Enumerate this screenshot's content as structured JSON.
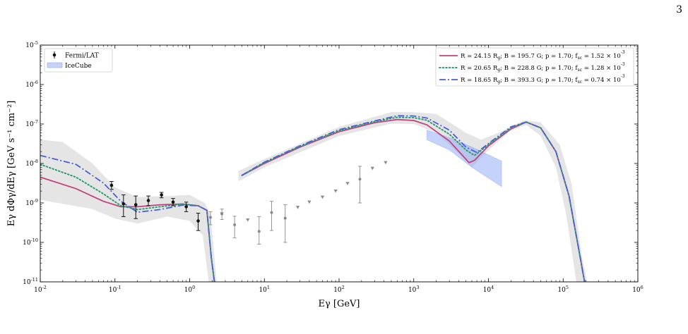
{
  "page": {
    "number": "3"
  },
  "chart_data": {
    "type": "line",
    "title": "",
    "xlabel": "Eγ [GeV]",
    "ylabel": "Eγ dΦγ/dEγ [GeV s⁻¹ cm⁻²]",
    "x_scale": "log",
    "y_scale": "log",
    "xlim": [
      0.01,
      1000000
    ],
    "ylim": [
      1e-11,
      1e-05
    ],
    "x_ticks": [
      {
        "value": 0.01,
        "base": "10",
        "exp": "-2"
      },
      {
        "value": 0.1,
        "base": "10",
        "exp": "-1"
      },
      {
        "value": 1,
        "base": "10",
        "exp": "0"
      },
      {
        "value": 10,
        "base": "10",
        "exp": "1"
      },
      {
        "value": 100,
        "base": "10",
        "exp": "2"
      },
      {
        "value": 1000,
        "base": "10",
        "exp": "3"
      },
      {
        "value": 10000,
        "base": "10",
        "exp": "4"
      },
      {
        "value": 100000,
        "base": "10",
        "exp": "5"
      },
      {
        "value": 1000000,
        "base": "10",
        "exp": "6"
      }
    ],
    "y_ticks": [
      {
        "value": 1e-11,
        "base": "10",
        "exp": "-11"
      },
      {
        "value": 1e-10,
        "base": "10",
        "exp": "-10"
      },
      {
        "value": 1e-09,
        "base": "10",
        "exp": "-9"
      },
      {
        "value": 1e-08,
        "base": "10",
        "exp": "-8"
      },
      {
        "value": 1e-07,
        "base": "10",
        "exp": "-7"
      },
      {
        "value": 1e-06,
        "base": "10",
        "exp": "-6"
      },
      {
        "value": 1e-05,
        "base": "10",
        "exp": "-5"
      }
    ],
    "grid": false,
    "legend_left": {
      "position": "top-left",
      "entries": [
        {
          "label": "Fermi/LAT",
          "kind": "errorbar-point",
          "color": "#111111"
        },
        {
          "label": "IceCube",
          "kind": "band",
          "color": "#7f9cf5"
        }
      ]
    },
    "legend_right": {
      "position": "top-right"
    },
    "series": [
      {
        "name": "R = 24.15 Rg; B = 195.7 G; p = 1.70; fsc = 1.52 × 10⁻³",
        "label": {
          "R": "24.15",
          "B": "195.7",
          "p": "1.70",
          "fsc": "1.52",
          "exp": "-3"
        },
        "color": "#c2407e",
        "style": "solid",
        "segments": [
          [
            [
              0.01,
              4.5e-09
            ],
            [
              0.03,
              2.3e-09
            ],
            [
              0.07,
              1.1e-09
            ],
            [
              0.12,
              8e-10
            ],
            [
              0.2,
              8e-10
            ],
            [
              0.4,
              9e-10
            ],
            [
              0.8,
              9.4e-10
            ],
            [
              1.3,
              8.5e-10
            ],
            [
              1.7,
              6.5e-10
            ],
            [
              1.95,
              4e-11
            ],
            [
              2.2,
              7e-12
            ]
          ],
          [
            [
              5,
              5e-09
            ],
            [
              10,
              1e-08
            ],
            [
              30,
              2.6e-08
            ],
            [
              100,
              6.4e-08
            ],
            [
              300,
              1.08e-07
            ],
            [
              600,
              1.3e-07
            ],
            [
              1000,
              1.23e-07
            ],
            [
              1500,
              9.5e-08
            ],
            [
              3000,
              3.7e-08
            ],
            [
              5500,
              1.05e-08
            ],
            [
              6500,
              1.2e-08
            ],
            [
              10000,
              2.8e-08
            ],
            [
              20000,
              7.5e-08
            ],
            [
              32000,
              1.12e-07
            ],
            [
              50000,
              8e-08
            ],
            [
              80000,
              2e-08
            ],
            [
              120000,
              1.5e-09
            ],
            [
              170000,
              4e-11
            ],
            [
              200000,
              7e-12
            ]
          ]
        ]
      },
      {
        "name": "R = 20.65 Rg; B = 228.8 G; p = 1.70; fsc = 1.28 × 10⁻³",
        "label": {
          "R": "20.65",
          "B": "228.8",
          "p": "1.70",
          "fsc": "1.28",
          "exp": "-3"
        },
        "color": "#2a9d6f",
        "style": "dotted",
        "segments": [
          [
            [
              0.01,
              9.5e-09
            ],
            [
              0.03,
              4.5e-09
            ],
            [
              0.07,
              1.7e-09
            ],
            [
              0.12,
              8.5e-10
            ],
            [
              0.2,
              6.8e-10
            ],
            [
              0.4,
              8e-10
            ],
            [
              0.8,
              9.4e-10
            ],
            [
              1.3,
              8.5e-10
            ],
            [
              1.7,
              6.5e-10
            ],
            [
              1.95,
              4e-11
            ],
            [
              2.2,
              7e-12
            ]
          ],
          [
            [
              5,
              5e-09
            ],
            [
              10,
              1.05e-08
            ],
            [
              30,
              2.7e-08
            ],
            [
              100,
              6.8e-08
            ],
            [
              300,
              1.15e-07
            ],
            [
              600,
              1.48e-07
            ],
            [
              1000,
              1.45e-07
            ],
            [
              1500,
              1.25e-07
            ],
            [
              3000,
              5.5e-08
            ],
            [
              5000,
              2.2e-08
            ],
            [
              6500,
              1.6e-08
            ],
            [
              10000,
              3e-08
            ],
            [
              20000,
              8e-08
            ],
            [
              32000,
              1.12e-07
            ],
            [
              50000,
              8e-08
            ],
            [
              80000,
              2e-08
            ],
            [
              120000,
              1.5e-09
            ],
            [
              170000,
              4e-11
            ],
            [
              200000,
              7e-12
            ]
          ]
        ]
      },
      {
        "name": "R = 18.65 Rg; B = 393.3 G; p = 1.70; fsc = 0.74 × 10⁻³",
        "label": {
          "R": "18.65",
          "B": "393.3",
          "p": "1.70",
          "fsc": "0.74",
          "exp": "-3"
        },
        "color": "#4a5fd4",
        "style": "dashdot",
        "segments": [
          [
            [
              0.01,
              1.6e-08
            ],
            [
              0.03,
              9.5e-09
            ],
            [
              0.07,
              3.2e-09
            ],
            [
              0.12,
              1.1e-09
            ],
            [
              0.2,
              5.8e-10
            ],
            [
              0.4,
              6.8e-10
            ],
            [
              0.8,
              8.8e-10
            ],
            [
              1.3,
              8.5e-10
            ],
            [
              1.7,
              6.5e-10
            ],
            [
              1.95,
              4e-11
            ],
            [
              2.2,
              7e-12
            ]
          ],
          [
            [
              5,
              5e-09
            ],
            [
              10,
              1.08e-08
            ],
            [
              30,
              2.8e-08
            ],
            [
              100,
              7.2e-08
            ],
            [
              300,
              1.2e-07
            ],
            [
              600,
              1.62e-07
            ],
            [
              1000,
              1.6e-07
            ],
            [
              1500,
              1.42e-07
            ],
            [
              3000,
              7e-08
            ],
            [
              5000,
              2.6e-08
            ],
            [
              7000,
              1.9e-08
            ],
            [
              10000,
              3.2e-08
            ],
            [
              20000,
              8.5e-08
            ],
            [
              32000,
              1.12e-07
            ],
            [
              50000,
              8e-08
            ],
            [
              80000,
              2e-08
            ],
            [
              120000,
              1.5e-09
            ],
            [
              170000,
              4e-11
            ],
            [
              200000,
              7e-12
            ]
          ]
        ]
      }
    ],
    "uncertainty_band": {
      "color": "#cfcfcf",
      "segments": [
        {
          "upper": [
            [
              0.01,
              4e-08
            ],
            [
              0.02,
              3.5e-08
            ],
            [
              0.05,
              1e-08
            ],
            [
              0.1,
              2.5e-09
            ],
            [
              0.2,
              1.4e-09
            ],
            [
              0.5,
              1.5e-09
            ],
            [
              1,
              1.6e-09
            ],
            [
              1.6,
              1e-09
            ],
            [
              1.9,
              5e-10
            ],
            [
              2.3,
              1e-11
            ]
          ],
          "lower": [
            [
              0.01,
              1.2e-09
            ],
            [
              0.05,
              7e-10
            ],
            [
              0.1,
              4e-10
            ],
            [
              0.2,
              3e-10
            ],
            [
              0.5,
              4.5e-10
            ],
            [
              1,
              3.5e-10
            ],
            [
              1.5,
              1.5e-10
            ],
            [
              1.8,
              1e-11
            ],
            [
              2.1,
              1e-11
            ]
          ]
        },
        {
          "upper": [
            [
              4.5,
              6.5e-09
            ],
            [
              10,
              1.3e-08
            ],
            [
              100,
              8.5e-08
            ],
            [
              500,
              2e-07
            ],
            [
              1000,
              2e-07
            ],
            [
              2000,
              1.8e-07
            ],
            [
              5000,
              6e-08
            ],
            [
              8000,
              4e-08
            ],
            [
              15000,
              6.5e-08
            ],
            [
              30000,
              1.25e-07
            ],
            [
              50000,
              1.1e-07
            ],
            [
              90000,
              3e-08
            ],
            [
              130000,
              3e-09
            ],
            [
              180000,
              4e-11
            ],
            [
              210000,
              1e-11
            ]
          ],
          "lower": [
            [
              4.5,
              3.5e-09
            ],
            [
              10,
              8e-09
            ],
            [
              100,
              5e-08
            ],
            [
              500,
              1.02e-07
            ],
            [
              1000,
              1e-07
            ],
            [
              2000,
              6e-08
            ],
            [
              4000,
              1.8e-08
            ],
            [
              6000,
              8e-09
            ],
            [
              9000,
              1.8e-08
            ],
            [
              20000,
              7e-08
            ],
            [
              32000,
              9.5e-08
            ],
            [
              50000,
              5e-08
            ],
            [
              80000,
              8e-09
            ],
            [
              110000,
              5e-10
            ],
            [
              150000,
              1e-11
            ]
          ]
        }
      ]
    },
    "icecube_band": {
      "label": "IceCube",
      "color": "#7f9cf5",
      "upper": [
        [
          1500,
          7e-08
        ],
        [
          3000,
          4.5e-08
        ],
        [
          6000,
          2.6e-08
        ],
        [
          15000,
          1.15e-08
        ]
      ],
      "lower": [
        [
          1500,
          4e-08
        ],
        [
          3000,
          2.2e-08
        ],
        [
          6000,
          8e-09
        ],
        [
          15000,
          2.6e-09
        ]
      ]
    },
    "fermi_points": [
      {
        "x": 0.09,
        "y": 2.8e-09,
        "lo": 2.2e-09,
        "hi": 3.5e-09
      },
      {
        "x": 0.13,
        "y": 9.5e-10,
        "lo": 4.5e-10,
        "hi": 1.6e-09
      },
      {
        "x": 0.19,
        "y": 9e-10,
        "lo": 4e-10,
        "hi": 1.5e-09
      },
      {
        "x": 0.28,
        "y": 1.15e-09,
        "lo": 8.5e-10,
        "hi": 1.5e-09
      },
      {
        "x": 0.42,
        "y": 1.6e-09,
        "lo": 1.35e-09,
        "hi": 1.85e-09
      },
      {
        "x": 0.6,
        "y": 1.05e-09,
        "lo": 8.5e-10,
        "hi": 1.3e-09
      },
      {
        "x": 0.9,
        "y": 8e-10,
        "lo": 6e-10,
        "hi": 1.05e-09
      },
      {
        "x": 1.3,
        "y": 3.5e-10,
        "lo": 2e-10,
        "hi": 5.5e-10
      }
    ],
    "grey_points": [
      {
        "x": 1.9,
        "y": 4.3e-10,
        "lo": 2.8e-10,
        "hi": 6e-10
      },
      {
        "x": 2.7,
        "y": 5.3e-10,
        "lo": 3.8e-10,
        "hi": 7e-10
      },
      {
        "x": 4.0,
        "y": 2.8e-10,
        "lo": 1.3e-10,
        "hi": 4.6e-10
      },
      {
        "x": 8.5,
        "y": 1.9e-10,
        "lo": 9e-11,
        "hi": 4.5e-10
      },
      {
        "x": 12.5,
        "y": 5.7e-10,
        "lo": 2e-10,
        "hi": 1.1e-09
      },
      {
        "x": 19,
        "y": 4.1e-10,
        "lo": 1e-10,
        "hi": 9e-10
      },
      {
        "x": 190,
        "y": 4e-09,
        "lo": 1e-09,
        "hi": 8.5e-09
      }
    ],
    "grey_upper_limits": [
      {
        "x": 2.7,
        "y": 5.3e-10
      },
      {
        "x": 6.0,
        "y": 3.7e-10
      },
      {
        "x": 28,
        "y": 7.7e-10
      },
      {
        "x": 40,
        "y": 1.05e-09
      },
      {
        "x": 60,
        "y": 1.4e-09
      },
      {
        "x": 90,
        "y": 2e-09
      },
      {
        "x": 130,
        "y": 3.1e-09
      },
      {
        "x": 280,
        "y": 7.5e-09
      },
      {
        "x": 420,
        "y": 1.05e-08
      }
    ]
  }
}
